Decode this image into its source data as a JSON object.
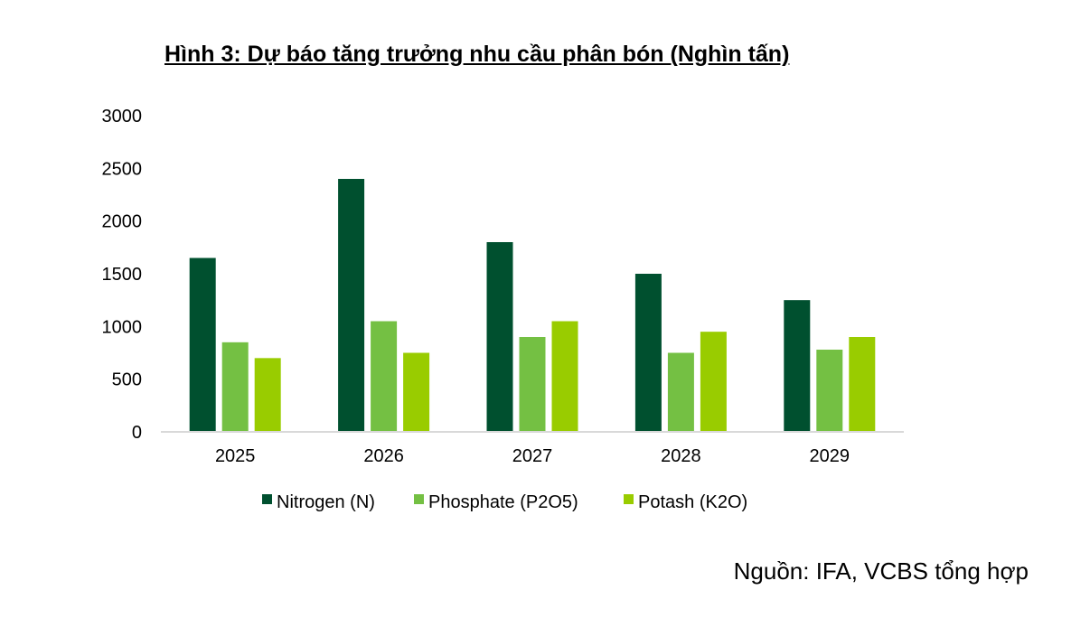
{
  "chart_data": {
    "type": "bar",
    "title": "Hình 3: Dự báo tăng trưởng nhu cầu phân bón (Nghìn tấn)",
    "categories": [
      "2025",
      "2026",
      "2027",
      "2028",
      "2029"
    ],
    "series": [
      {
        "name": "Nitrogen (N)",
        "color": "#00502F",
        "values": [
          1650,
          2400,
          1800,
          1500,
          1250
        ]
      },
      {
        "name": "Phosphate (P2O5)",
        "color": "#74C043",
        "values": [
          850,
          1050,
          900,
          750,
          780
        ]
      },
      {
        "name": "Potash (K2O)",
        "color": "#99CC00",
        "values": [
          700,
          750,
          1050,
          950,
          900
        ]
      }
    ],
    "ylim": [
      0,
      3000
    ],
    "yticks": [
      "0",
      "500",
      "1000",
      "1500",
      "2000",
      "2500",
      "3000"
    ],
    "xlabel": "",
    "ylabel": "",
    "grid": false,
    "legend": "bottom",
    "axis_color": "#D9D9D9"
  },
  "source": "Nguồn: IFA, VCBS tổng hợp"
}
